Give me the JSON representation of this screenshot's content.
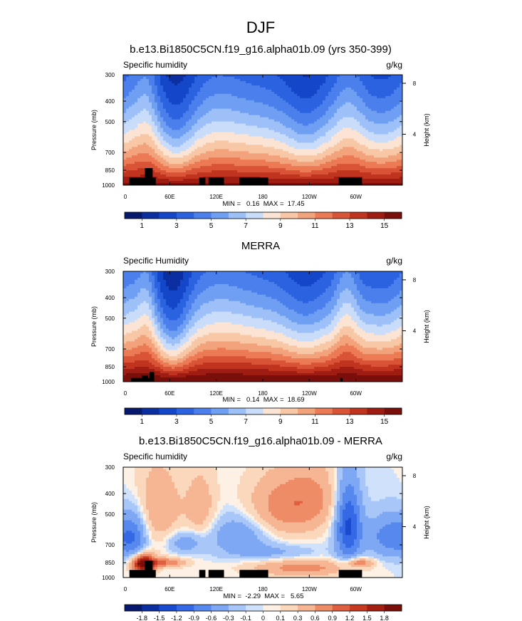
{
  "figure": {
    "title": "DJF"
  },
  "colors": {
    "seq": [
      "#07196e",
      "#0b2fa0",
      "#1446c9",
      "#2a62e0",
      "#4b7fec",
      "#6f9ff2",
      "#9cc0f7",
      "#c9dcfa",
      "#fbe4d4",
      "#f8c7a6",
      "#f3a37c",
      "#eb7a55",
      "#d95336",
      "#c0341f",
      "#9e1c12",
      "#7a0e0a"
    ],
    "div": [
      "#07196e",
      "#0b2fa0",
      "#1a4ad0",
      "#3468e4",
      "#5788ee",
      "#7fa8f4",
      "#a8c6f8",
      "#d0e2fb",
      "#fdf0e4",
      "#fbd7bc",
      "#f6b593",
      "#ee8c67",
      "#df6040",
      "#c73a22",
      "#a31f12",
      "#7a0e0a"
    ]
  },
  "chart_data": [
    {
      "type": "heatmap",
      "title": "b.e13.Bi1850C5CN.f19_g16.alpha01b.09 (yrs 350-399)",
      "left_label": "Specific humidity",
      "right_label": "g/kg",
      "ylabel": "Pressure (mb)",
      "right_axis_label": "Height (km)",
      "y_ticks": [
        "300",
        "400",
        "500",
        "700",
        "850",
        "1000"
      ],
      "y_tick_values": [
        300,
        400,
        500,
        700,
        850,
        1000
      ],
      "ylim": [
        300,
        1000
      ],
      "right_ticks": [
        "8",
        "4"
      ],
      "right_tick_values": [
        8,
        4
      ],
      "x_ticks": [
        "0",
        "60E",
        "120E",
        "180",
        "120W",
        "60W"
      ],
      "x_tick_values": [
        0,
        60,
        120,
        180,
        240,
        300
      ],
      "xlim": [
        0,
        360
      ],
      "stats": "MIN =   0.16  MAX =  17.45",
      "scale": "seq",
      "colorbar_labels": [
        "1",
        "3",
        "5",
        "7",
        "9",
        "11",
        "13",
        "15"
      ],
      "contour_levels": [
        1,
        2,
        3,
        4,
        5,
        6,
        7,
        8,
        9,
        10,
        11,
        12,
        13,
        14,
        15
      ],
      "field": {
        "base": 15.5,
        "scale_height": 0.78,
        "max": 17.45,
        "anomalies": [
          {
            "lon": 10,
            "width": 16,
            "amp": 0.18
          },
          {
            "lon": 30,
            "width": 10,
            "amp": 0.3
          },
          {
            "lon": 70,
            "width": 20,
            "amp": -0.35
          },
          {
            "lon": 120,
            "width": 30,
            "amp": 0.14
          },
          {
            "lon": 235,
            "width": 22,
            "amp": -0.26
          },
          {
            "lon": 290,
            "width": 14,
            "amp": 0.24
          },
          {
            "lon": 340,
            "width": 26,
            "amp": -0.12
          }
        ]
      },
      "topography": [
        {
          "lon0": 8,
          "lon1": 42,
          "p_top": 920
        },
        {
          "lon0": 28,
          "lon1": 38,
          "p_top": 830
        },
        {
          "lon0": 98,
          "lon1": 106,
          "p_top": 920
        },
        {
          "lon0": 110,
          "lon1": 130,
          "p_top": 920
        },
        {
          "lon0": 150,
          "lon1": 187,
          "p_top": 920
        },
        {
          "lon0": 278,
          "lon1": 308,
          "p_top": 920
        }
      ]
    },
    {
      "type": "heatmap",
      "title": "MERRA",
      "left_label": "Specific Humidity",
      "right_label": "g/kg",
      "ylabel": "Pressure (mb)",
      "right_axis_label": "Height (km)",
      "y_ticks": [
        "300",
        "400",
        "500",
        "700",
        "850",
        "1000"
      ],
      "y_tick_values": [
        300,
        400,
        500,
        700,
        850,
        1000
      ],
      "ylim": [
        300,
        1000
      ],
      "right_ticks": [
        "8",
        "4"
      ],
      "right_tick_values": [
        8,
        4
      ],
      "x_ticks": [
        "0",
        "60E",
        "120E",
        "180",
        "120W",
        "60W"
      ],
      "x_tick_values": [
        0,
        60,
        120,
        180,
        240,
        300
      ],
      "xlim": [
        0,
        360
      ],
      "stats": "MIN =   0.14  MAX =  18.69",
      "scale": "seq",
      "colorbar_labels": [
        "1",
        "3",
        "5",
        "7",
        "9",
        "11",
        "13",
        "15"
      ],
      "contour_levels": [
        1,
        2,
        3,
        4,
        5,
        6,
        7,
        8,
        9,
        10,
        11,
        12,
        13,
        14,
        15
      ],
      "field": {
        "base": 16.5,
        "scale_height": 0.78,
        "max": 18.69,
        "anomalies": [
          {
            "lon": 10,
            "width": 16,
            "amp": 0.18
          },
          {
            "lon": 30,
            "width": 8,
            "amp": 0.28
          },
          {
            "lon": 65,
            "width": 18,
            "amp": -0.42
          },
          {
            "lon": 125,
            "width": 30,
            "amp": 0.14
          },
          {
            "lon": 235,
            "width": 22,
            "amp": -0.22
          },
          {
            "lon": 288,
            "width": 10,
            "amp": 0.32
          },
          {
            "lon": 340,
            "width": 26,
            "amp": -0.1
          }
        ]
      },
      "topography": [
        {
          "lon0": 10,
          "lon1": 40,
          "p_top": 960
        },
        {
          "lon0": 24,
          "lon1": 32,
          "p_top": 935
        },
        {
          "lon0": 34,
          "lon1": 40,
          "p_top": 900
        },
        {
          "lon0": 280,
          "lon1": 283,
          "p_top": 960
        }
      ]
    },
    {
      "type": "heatmap",
      "title": "b.e13.Bi1850C5CN.f19_g16.alpha01b.09 - MERRA",
      "left_label": "Specific humidity",
      "right_label": "g/kg",
      "ylabel": "Pressure (mb)",
      "right_axis_label": "Height (km)",
      "y_ticks": [
        "300",
        "400",
        "500",
        "700",
        "850",
        "1000"
      ],
      "y_tick_values": [
        300,
        400,
        500,
        700,
        850,
        1000
      ],
      "ylim": [
        300,
        1000
      ],
      "right_ticks": [
        "8",
        "4"
      ],
      "right_tick_values": [
        8,
        4
      ],
      "x_ticks": [
        "0",
        "60E",
        "120E",
        "180",
        "120W",
        "60W"
      ],
      "x_tick_values": [
        0,
        60,
        120,
        180,
        240,
        300
      ],
      "xlim": [
        0,
        360
      ],
      "stats": "MIN =  -2.29  MAX =   5.65",
      "scale": "div",
      "colorbar_labels": [
        "-1.8",
        "-1.5",
        "-1.2",
        "-0.9",
        "-0.6",
        "-0.3",
        "-0.1",
        "0",
        "0.1",
        "0.3",
        "0.6",
        "0.9",
        "1.2",
        "1.5",
        "1.8"
      ],
      "contour_levels": [
        -1.8,
        -1.5,
        -1.2,
        -0.9,
        -0.6,
        -0.3,
        -0.1,
        0,
        0.1,
        0.3,
        0.6,
        0.9,
        1.2,
        1.5,
        1.8
      ],
      "diff_blobs": [
        {
          "lon": 26,
          "p": 860,
          "dlon": 10,
          "dp": 60,
          "amp": 2.2
        },
        {
          "lon": 55,
          "p": 850,
          "dlon": 18,
          "dp": 30,
          "amp": 0.9
        },
        {
          "lon": 45,
          "p": 470,
          "dlon": 22,
          "dp": 160,
          "amp": 0.55
        },
        {
          "lon": 100,
          "p": 480,
          "dlon": 14,
          "dp": 140,
          "amp": 0.5
        },
        {
          "lon": 200,
          "p": 470,
          "dlon": 30,
          "dp": 120,
          "amp": 0.7
        },
        {
          "lon": 245,
          "p": 420,
          "dlon": 25,
          "dp": 110,
          "amp": 0.6
        },
        {
          "lon": 230,
          "p": 900,
          "dlon": 45,
          "dp": 60,
          "amp": 0.75
        },
        {
          "lon": 305,
          "p": 850,
          "dlon": 12,
          "dp": 30,
          "amp": 0.8
        },
        {
          "lon": 15,
          "p": 640,
          "dlon": 12,
          "dp": 130,
          "amp": -0.7
        },
        {
          "lon": 80,
          "p": 680,
          "dlon": 18,
          "dp": 60,
          "amp": -0.55
        },
        {
          "lon": 150,
          "p": 620,
          "dlon": 30,
          "dp": 90,
          "amp": -0.6
        },
        {
          "lon": 190,
          "p": 760,
          "dlon": 40,
          "dp": 50,
          "amp": -0.4
        },
        {
          "lon": 290,
          "p": 560,
          "dlon": 12,
          "dp": 180,
          "amp": -1.3
        },
        {
          "lon": 345,
          "p": 640,
          "dlon": 22,
          "dp": 110,
          "amp": -0.8
        }
      ],
      "topography": [
        {
          "lon0": 8,
          "lon1": 42,
          "p_top": 920
        },
        {
          "lon0": 28,
          "lon1": 38,
          "p_top": 830
        },
        {
          "lon0": 98,
          "lon1": 106,
          "p_top": 920
        },
        {
          "lon0": 110,
          "lon1": 130,
          "p_top": 920
        },
        {
          "lon0": 150,
          "lon1": 187,
          "p_top": 920
        },
        {
          "lon0": 278,
          "lon1": 308,
          "p_top": 920
        }
      ]
    }
  ]
}
